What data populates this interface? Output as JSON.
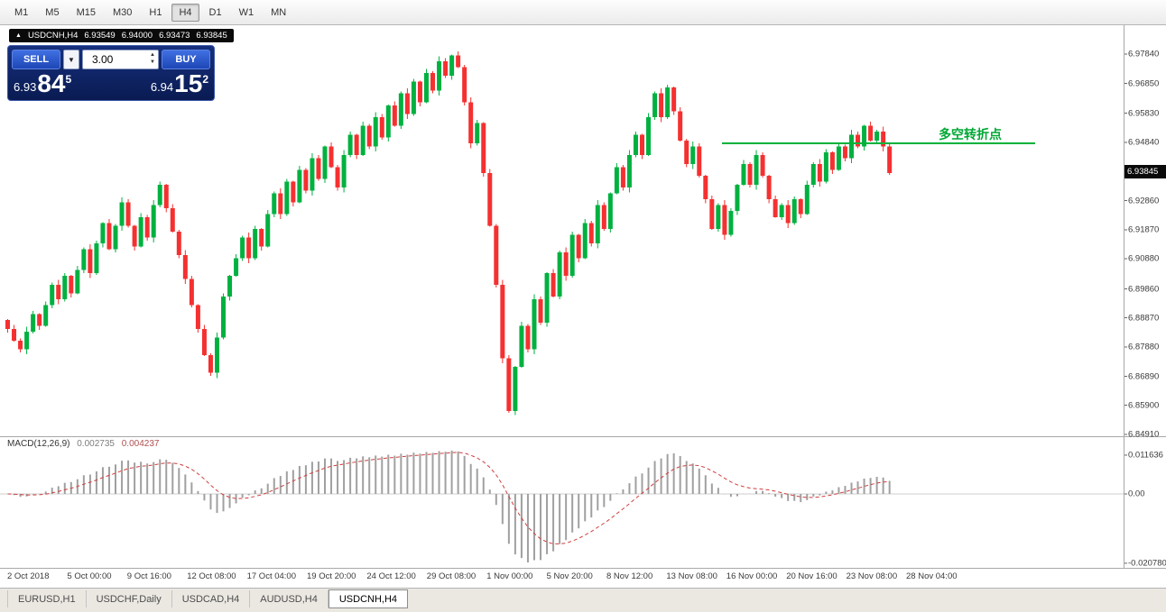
{
  "toolbar": {
    "timeframes": [
      "M1",
      "M5",
      "M15",
      "M30",
      "H1",
      "H4",
      "D1",
      "W1",
      "MN"
    ],
    "selected": "H4"
  },
  "ohlc_bar": {
    "symbol": "USDCNH,H4",
    "open": "6.93549",
    "high": "6.94000",
    "low": "6.93473",
    "close": "6.93845"
  },
  "trade_panel": {
    "sell_label": "SELL",
    "buy_label": "BUY",
    "volume": "3.00",
    "sell_price": {
      "prefix": "6.93",
      "main": "84",
      "sup": "5"
    },
    "buy_price": {
      "prefix": "6.94",
      "main": "15",
      "sup": "2"
    }
  },
  "price_axis": {
    "labels": [
      "6.97840",
      "6.96850",
      "6.95830",
      "6.94840",
      "6.92860",
      "6.91870",
      "6.90880",
      "6.89860",
      "6.88870",
      "6.87880",
      "6.86890",
      "6.85900",
      "6.84910"
    ],
    "current": "6.93845"
  },
  "macd": {
    "label": "MACD(12,26,9)",
    "value_main": "0.002735",
    "value_signal": "0.004237",
    "axis_labels": [
      "0.011636",
      "0.00",
      "-0.020780"
    ]
  },
  "time_axis": {
    "labels": [
      "2 Oct 2018",
      "5 Oct 00:00",
      "9 Oct 16:00",
      "12 Oct 08:00",
      "17 Oct 04:00",
      "19 Oct 20:00",
      "24 Oct 12:00",
      "29 Oct 08:00",
      "1 Nov 00:00",
      "5 Nov 20:00",
      "8 Nov 12:00",
      "13 Nov 08:00",
      "16 Nov 00:00",
      "20 Nov 16:00",
      "23 Nov 08:00",
      "28 Nov 04:00"
    ]
  },
  "tabs": {
    "items": [
      "EURUSD,H1",
      "USDCHF,Daily",
      "USDCAD,H4",
      "AUDUSD,H4",
      "USDCNH,H4"
    ],
    "active": "USDCNH,H4"
  },
  "chart_data": {
    "type": "candlestick",
    "title": "USDCNH,H4",
    "symbol": "USDCNH",
    "timeframe": "H4",
    "ylim": [
      6.8491,
      6.9882
    ],
    "first_open": 6.888,
    "closes": [
      6.885,
      6.881,
      6.878,
      6.884,
      6.89,
      6.886,
      6.893,
      6.9,
      6.895,
      6.903,
      6.897,
      6.905,
      6.912,
      6.904,
      6.914,
      6.921,
      6.912,
      6.92,
      6.928,
      6.92,
      6.913,
      6.923,
      6.916,
      6.927,
      6.934,
      6.926,
      6.918,
      6.91,
      6.902,
      6.893,
      6.885,
      6.876,
      6.87,
      6.882,
      6.896,
      6.903,
      6.909,
      6.916,
      6.909,
      6.919,
      6.913,
      6.924,
      6.931,
      6.924,
      6.935,
      6.928,
      6.939,
      6.932,
      6.943,
      6.936,
      6.947,
      6.94,
      6.933,
      6.944,
      6.951,
      6.944,
      6.954,
      6.947,
      6.957,
      6.95,
      6.961,
      6.954,
      6.965,
      6.958,
      6.969,
      6.962,
      6.972,
      6.966,
      6.976,
      6.971,
      6.978,
      6.974,
      6.962,
      6.948,
      6.955,
      6.938,
      6.92,
      6.9,
      6.875,
      6.857,
      6.872,
      6.886,
      6.878,
      6.895,
      6.887,
      6.904,
      6.896,
      6.911,
      6.903,
      6.917,
      6.909,
      6.921,
      6.914,
      6.927,
      6.919,
      6.931,
      6.94,
      6.933,
      6.944,
      6.951,
      6.944,
      6.957,
      6.965,
      6.957,
      6.967,
      6.959,
      6.949,
      6.941,
      6.947,
      6.937,
      6.929,
      6.919,
      6.927,
      6.917,
      6.925,
      6.934,
      6.941,
      6.934,
      6.944,
      6.937,
      6.929,
      6.923,
      6.927,
      6.921,
      6.929,
      6.924,
      6.934,
      6.941,
      6.935,
      6.945,
      6.939,
      6.947,
      6.943,
      6.951,
      6.947,
      6.954,
      6.949,
      6.952,
      6.947,
      6.938
    ],
    "hline": {
      "price": 6.948,
      "label": "多空转折点",
      "color": "#00a835"
    },
    "indicator": {
      "name": "MACD",
      "params": [
        12,
        26,
        9
      ],
      "main": "0.002735",
      "signal": "0.004237"
    },
    "colors": {
      "bull": "#00b140",
      "bear": "#f53030",
      "hline": "#00b23a",
      "macd_hist": "#a0a0a0",
      "macd_signal": "#cf3d3d"
    }
  }
}
